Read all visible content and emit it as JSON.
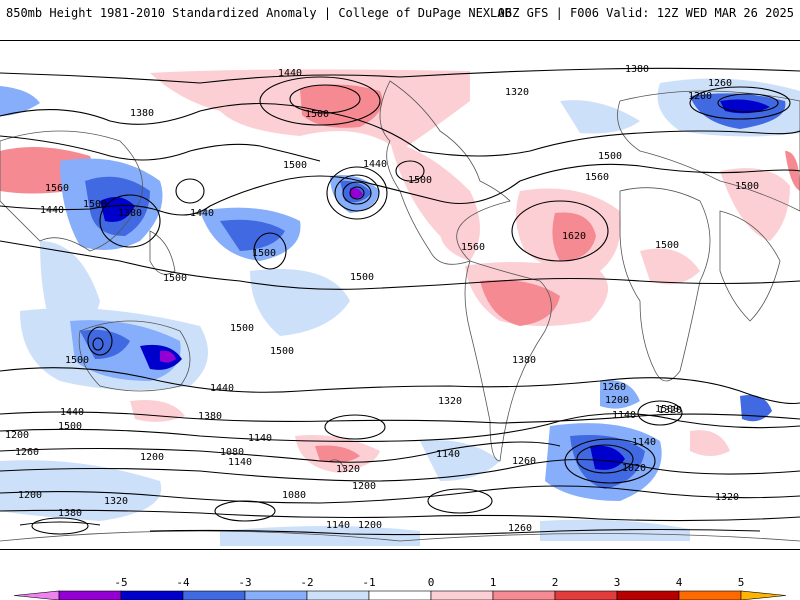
{
  "header": {
    "title_left": "850mb Height 1981-2010 Standardized Anomaly | College of DuPage NEXLAB",
    "title_right": "06Z GFS | F006 Valid: 12Z WED MAR 26 2025"
  },
  "map": {
    "contour_labels": [
      "1440",
      "1500",
      "1380",
      "1260",
      "1200",
      "1320",
      "1380",
      "1500",
      "1440",
      "1560",
      "1440",
      "1500",
      "1380",
      "1440",
      "1500",
      "1500",
      "1500",
      "1560",
      "1620",
      "1500",
      "1500",
      "1500",
      "1500",
      "1500",
      "1500",
      "1560",
      "1500",
      "1440",
      "1380",
      "1320",
      "1380",
      "1320",
      "1260",
      "1200",
      "1140",
      "1440",
      "1200",
      "1500",
      "1260",
      "1140",
      "1080",
      "1200",
      "1140",
      "1020",
      "1080",
      "1320",
      "1140",
      "1200",
      "1260",
      "1140",
      "1200",
      "1320",
      "1140",
      "1200",
      "1260",
      "1320",
      "1380",
      "1500"
    ]
  },
  "colorbar": {
    "colors": [
      "#ee82ee",
      "#9400d3",
      "#0000cd",
      "#4169e1",
      "#87aefa",
      "#cde0fa",
      "#ffffff",
      "#fccfd4",
      "#f58a92",
      "#e23c3c",
      "#b80000",
      "#ff6a00",
      "#ffb400"
    ],
    "ticks": [
      "-5",
      "-4",
      "-3",
      "-2",
      "-1",
      "0",
      "1",
      "2",
      "3",
      "4",
      "5"
    ]
  }
}
